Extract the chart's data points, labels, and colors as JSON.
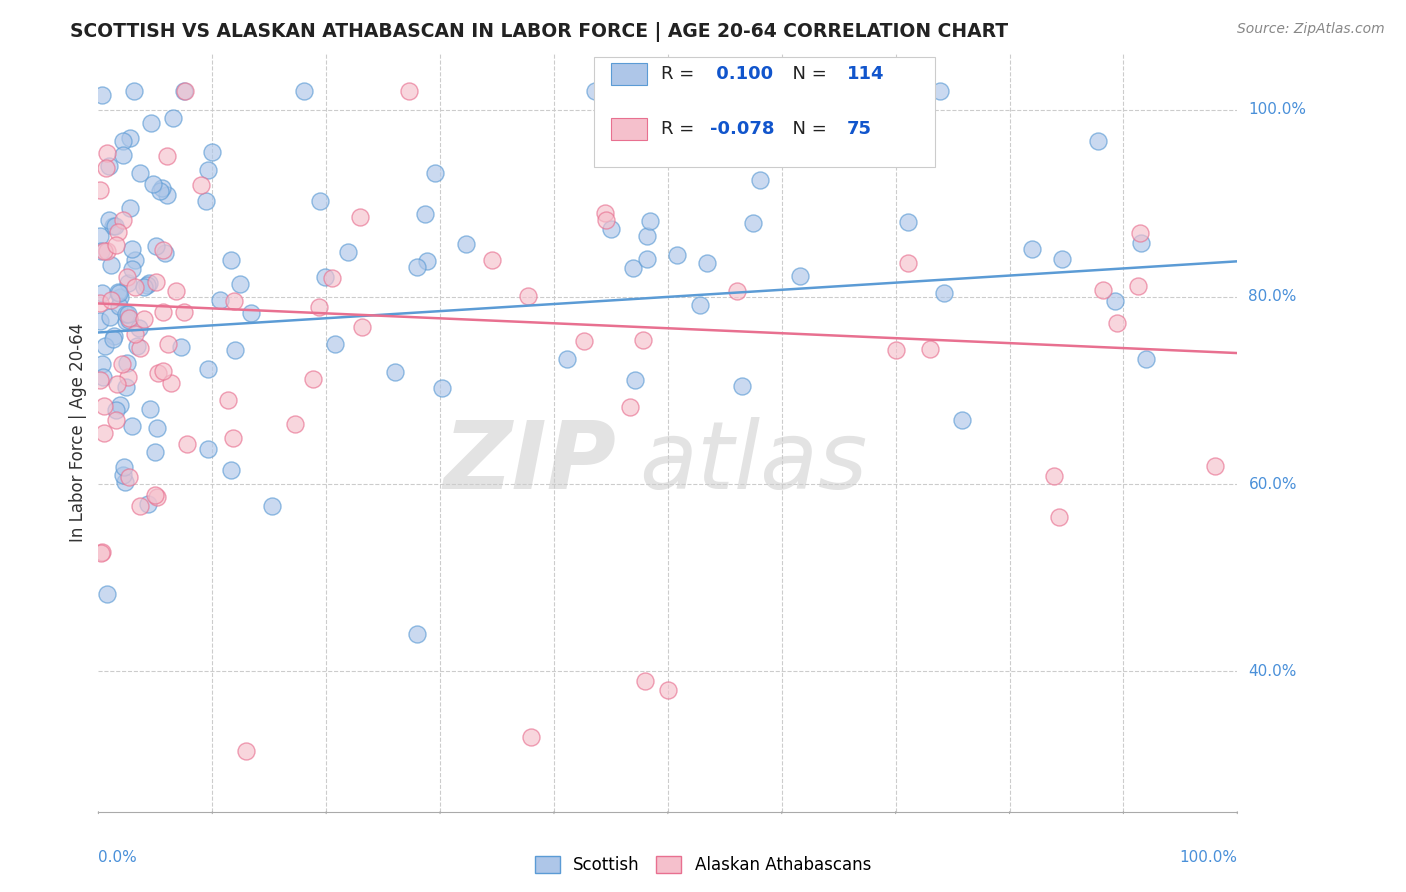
{
  "title": "SCOTTISH VS ALASKAN ATHABASCAN IN LABOR FORCE | AGE 20-64 CORRELATION CHART",
  "source": "Source: ZipAtlas.com",
  "ylabel": "In Labor Force | Age 20-64",
  "xlim": [
    0.0,
    1.0
  ],
  "ylim": [
    0.25,
    1.06
  ],
  "scottish_R": 0.1,
  "scottish_N": 114,
  "athabascan_R": -0.078,
  "athabascan_N": 75,
  "scottish_fill": "#aec6e8",
  "athabascan_fill": "#f5c0cc",
  "scottish_edge": "#5b9bd5",
  "athabascan_edge": "#e87090",
  "legend_box_edge": "#cccccc",
  "R_color": "#1155cc",
  "N_color": "#1155cc",
  "grid_color": "#cccccc",
  "axis_tick_color": "#4a90d9",
  "ytick_labels": [
    "40.0%",
    "60.0%",
    "80.0%",
    "100.0%"
  ],
  "ytick_vals": [
    0.4,
    0.6,
    0.8,
    1.0
  ],
  "xtick_label_left": "0.0%",
  "xtick_label_right": "100.0%",
  "legend_label_1": "Scottish",
  "legend_label_2": "Alaskan Athabascans",
  "sc_line_start_y": 0.762,
  "sc_line_end_y": 0.838,
  "at_line_start_y": 0.793,
  "at_line_end_y": 0.74
}
